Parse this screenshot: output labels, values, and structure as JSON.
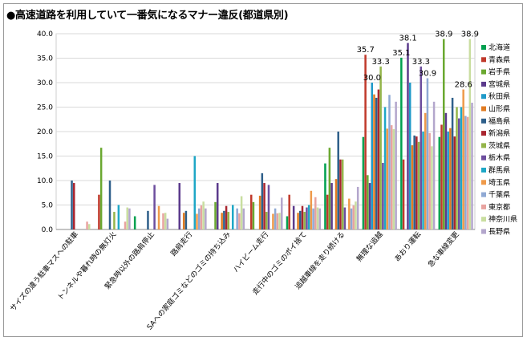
{
  "title": "●高速道路を利用していて一番気になるマナー違反(都道県別)",
  "chart_data": {
    "type": "bar",
    "ylim": [
      0,
      40
    ],
    "yticks": [
      "0.0",
      "5.0",
      "10.0",
      "15.0",
      "20.0",
      "25.0",
      "30.0",
      "35.0",
      "40.0"
    ],
    "grid": true,
    "legend_position": "right",
    "categories": [
      "サイズの違う駐車マスへの駐車",
      "トンネルや暮れ時の無灯火",
      "緊急時以外の路肩停止",
      "路肩走行",
      "SAへの家庭ゴミなどのゴミの持ち込み",
      "ハイビーム走行",
      "走行中のゴミのポイ捨て",
      "追越車線を走り続ける",
      "無理な追越",
      "あおり運転",
      "急な車線変更"
    ],
    "series": [
      {
        "name": "北海道",
        "color": "#00a050",
        "values": [
          0.0,
          0.0,
          2.7,
          0.0,
          0.0,
          0.0,
          2.7,
          13.5,
          18.9,
          35.1,
          18.9
        ]
      },
      {
        "name": "青森県",
        "color": "#c0392b",
        "values": [
          0.0,
          7.1,
          0.0,
          0.0,
          0.0,
          7.1,
          7.1,
          7.1,
          35.7,
          14.3,
          21.4
        ]
      },
      {
        "name": "岩手県",
        "color": "#6aa830",
        "values": [
          0.0,
          16.7,
          0.0,
          0.0,
          5.6,
          5.6,
          0.0,
          16.7,
          11.1,
          0.0,
          38.9
        ]
      },
      {
        "name": "宮城県",
        "color": "#5b3a8c",
        "values": [
          0.0,
          0.0,
          0.0,
          9.5,
          9.5,
          0.0,
          4.8,
          9.5,
          9.5,
          38.1,
          23.8
        ]
      },
      {
        "name": "秋田県",
        "color": "#1f9ac9",
        "values": [
          0.0,
          0.0,
          0.0,
          0.0,
          0.0,
          0.0,
          0.0,
          0.0,
          30.0,
          30.0,
          20.0
        ]
      },
      {
        "name": "山形県",
        "color": "#e07b22",
        "values": [
          0.0,
          0.0,
          0.0,
          3.4,
          3.4,
          6.9,
          3.4,
          10.3,
          27.6,
          17.2,
          20.7
        ]
      },
      {
        "name": "福島県",
        "color": "#2e5f8a",
        "values": [
          10.0,
          10.0,
          3.8,
          3.8,
          3.8,
          11.5,
          3.8,
          20.0,
          26.9,
          19.2,
          26.9
        ]
      },
      {
        "name": "新潟県",
        "color": "#a9252f",
        "values": [
          9.5,
          0.0,
          0.0,
          0.0,
          4.8,
          9.5,
          4.8,
          14.3,
          28.6,
          19.0,
          19.0
        ]
      },
      {
        "name": "茨城県",
        "color": "#94b54a",
        "values": [
          0.0,
          3.6,
          0.0,
          0.0,
          3.6,
          3.6,
          3.6,
          14.3,
          33.3,
          17.9,
          25.0
        ]
      },
      {
        "name": "栃木県",
        "color": "#6d4e9e",
        "values": [
          0.0,
          0.0,
          9.1,
          0.0,
          0.0,
          9.1,
          4.5,
          4.5,
          13.6,
          33.3,
          22.7
        ]
      },
      {
        "name": "群馬県",
        "color": "#1ea7c6",
        "values": [
          0.0,
          5.0,
          0.0,
          15.0,
          5.0,
          0.0,
          5.0,
          0.0,
          25.0,
          20.0,
          25.0
        ]
      },
      {
        "name": "埼玉県",
        "color": "#ef9a4a",
        "values": [
          0.0,
          0.0,
          4.8,
          3.2,
          0.0,
          3.2,
          7.9,
          6.3,
          20.6,
          23.8,
          28.6
        ]
      },
      {
        "name": "千葉県",
        "color": "#8fa9d4",
        "values": [
          0.0,
          0.0,
          0.0,
          4.3,
          4.3,
          4.3,
          4.3,
          4.3,
          27.5,
          30.9,
          23.2
        ]
      },
      {
        "name": "東京都",
        "color": "#e8a3a0",
        "values": [
          1.6,
          1.6,
          3.3,
          4.9,
          3.3,
          3.3,
          6.6,
          4.9,
          21.3,
          19.7,
          23.0
        ]
      },
      {
        "name": "神奈川県",
        "color": "#c9dea0",
        "values": [
          1.1,
          4.5,
          3.4,
          5.7,
          6.8,
          3.4,
          4.5,
          5.7,
          20.5,
          17.0,
          38.9
        ]
      },
      {
        "name": "長野県",
        "color": "#b3a6cc",
        "values": [
          0.0,
          4.3,
          2.2,
          4.3,
          4.3,
          6.5,
          4.3,
          8.7,
          26.1,
          26.1,
          25.9
        ]
      }
    ],
    "data_labels": [
      {
        "text": "35.7",
        "category": 8,
        "series": 1
      },
      {
        "text": "30.0",
        "category": 8,
        "series": 4
      },
      {
        "text": "33.3",
        "category": 8,
        "series": 8
      },
      {
        "text": "38.1",
        "category": 9,
        "series": 3
      },
      {
        "text": "35.1",
        "category": 9,
        "series": 0
      },
      {
        "text": "33.3",
        "category": 9,
        "series": 9
      },
      {
        "text": "30.9",
        "category": 9,
        "series": 12
      },
      {
        "text": "38.9",
        "category": 10,
        "series": 2
      },
      {
        "text": "38.9",
        "category": 10,
        "series": 14
      },
      {
        "text": "28.6",
        "category": 10,
        "series": 11
      }
    ]
  }
}
